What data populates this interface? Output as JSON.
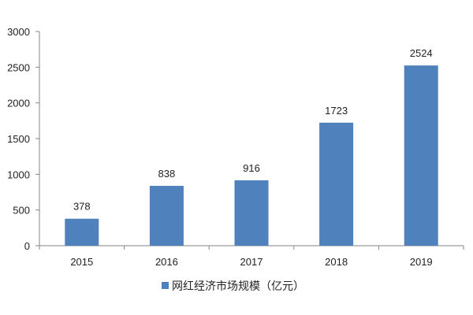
{
  "chart_data": {
    "type": "bar",
    "categories": [
      "2015",
      "2016",
      "2017",
      "2018",
      "2019"
    ],
    "series": [
      {
        "name": "网红经济市场规模（亿元）",
        "values": [
          378,
          838,
          916,
          1723,
          2524
        ]
      }
    ],
    "data_labels": [
      "378",
      "838",
      "916",
      "1723",
      "2524"
    ],
    "ylim": [
      0,
      3000
    ],
    "y_ticks": [
      0,
      500,
      1000,
      1500,
      2000,
      2500,
      3000
    ],
    "title": "",
    "xlabel": "",
    "ylabel": "",
    "grid": false,
    "legend": "bottom",
    "bar_color": "#4f81bd"
  }
}
